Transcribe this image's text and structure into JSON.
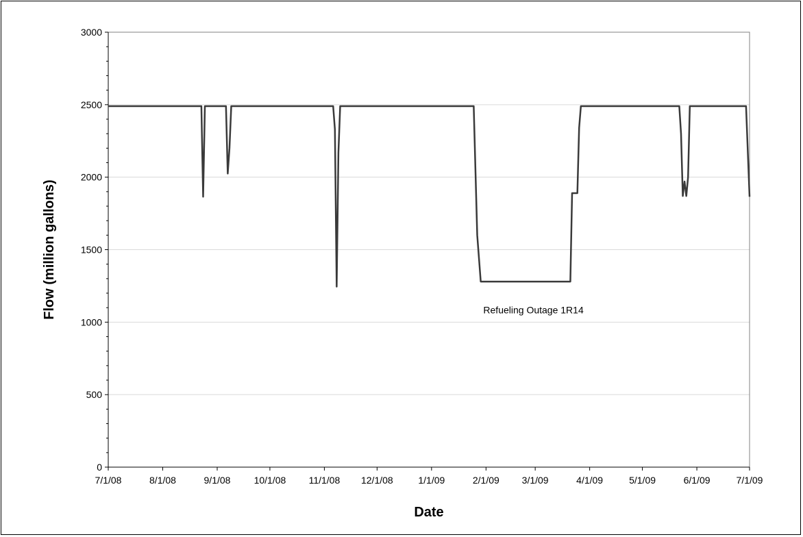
{
  "chart_data": {
    "type": "line",
    "title": "",
    "xlabel": "Date",
    "ylabel": "Flow (million gallons)",
    "x_tick_labels": [
      "7/1/08",
      "8/1/08",
      "9/1/08",
      "10/1/08",
      "11/1/08",
      "12/1/08",
      "1/1/09",
      "2/1/09",
      "3/1/09",
      "4/1/09",
      "5/1/09",
      "6/1/09",
      "7/1/09"
    ],
    "x_tick_dates": [
      "2008-07-01",
      "2008-08-01",
      "2008-09-01",
      "2008-10-01",
      "2008-11-01",
      "2008-12-01",
      "2009-01-01",
      "2009-02-01",
      "2009-03-01",
      "2009-04-01",
      "2009-05-01",
      "2009-06-01",
      "2009-07-01"
    ],
    "xlim": [
      "2008-07-01",
      "2009-07-01"
    ],
    "ylim": [
      0,
      3000
    ],
    "y_ticks": [
      0,
      500,
      1000,
      1500,
      2000,
      2500,
      3000
    ],
    "grid": "horizontal",
    "line_color": "#3a3a3a",
    "gridline_color": "#d9d9d9",
    "series": [
      {
        "x": [
          "2008-07-01",
          "2008-08-23",
          "2008-08-24",
          "2008-08-25",
          "2008-09-06",
          "2008-09-07",
          "2008-09-08",
          "2008-09-09",
          "2008-11-06",
          "2008-11-07",
          "2008-11-08",
          "2008-11-09",
          "2008-11-10",
          "2009-01-25",
          "2009-01-27",
          "2009-01-29",
          "2009-03-21",
          "2009-03-22",
          "2009-03-25",
          "2009-03-26",
          "2009-03-27",
          "2009-05-22",
          "2009-05-23",
          "2009-05-24",
          "2009-05-25",
          "2009-05-26",
          "2009-05-27",
          "2009-05-28",
          "2009-06-29",
          "2009-07-01"
        ],
        "y": [
          2490,
          2490,
          1865,
          2490,
          2490,
          2025,
          2200,
          2490,
          2490,
          2330,
          1245,
          2170,
          2490,
          2490,
          1600,
          1280,
          1280,
          1890,
          1890,
          2340,
          2490,
          2490,
          2300,
          1870,
          1970,
          1870,
          2000,
          2490,
          2490,
          1865
        ]
      }
    ],
    "annotations": [
      {
        "text": "Refueling Outage 1R14",
        "x": "2009-02-28",
        "y": 1060
      }
    ]
  }
}
